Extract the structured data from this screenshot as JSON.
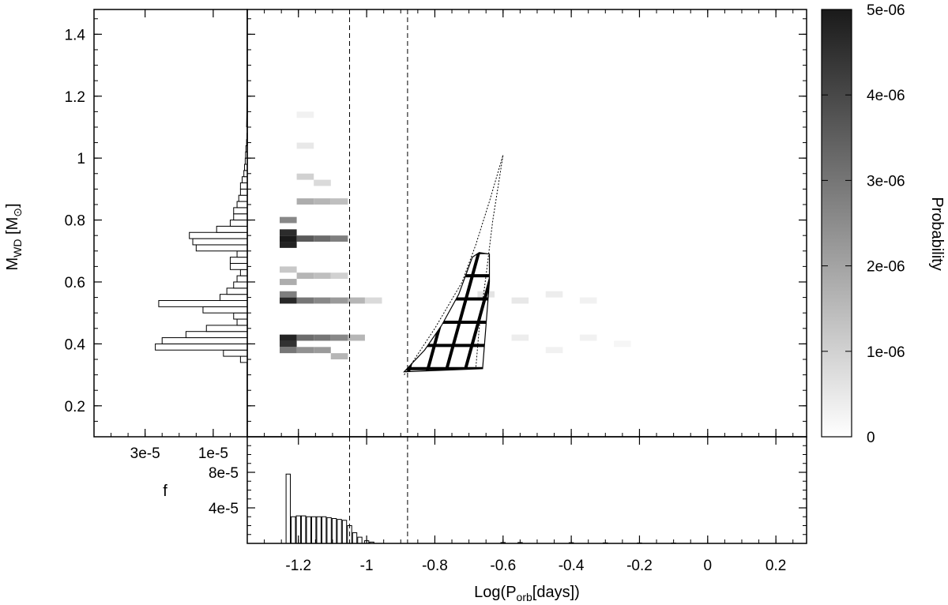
{
  "chart_data": [
    {
      "panel": "main",
      "type": "heatmap",
      "xlabel": "Log(P",
      "xlabel_sub": "orb",
      "xlabel_tail": "[days])",
      "ylabel": "M",
      "ylabel_sub": "WD",
      "ylabel_tail": " [M",
      "ylabel_sub2": "⊙",
      "ylabel_close": "]",
      "xlim": [
        -1.35,
        0.29
      ],
      "ylim": [
        0.1,
        1.48
      ],
      "xticks": [
        -1.2,
        -1,
        -0.8,
        -0.6,
        -0.4,
        -0.2,
        0,
        0.2
      ],
      "xtick_labels": [
        "-1.2",
        "-1",
        "-0.8",
        "-0.6",
        "-0.4",
        "-0.2",
        "0",
        "0.2"
      ],
      "yticks": [
        0.2,
        0.4,
        0.6,
        0.8,
        1,
        1.2,
        1.4
      ],
      "ytick_labels": [
        "0.2",
        "0.4",
        "0.6",
        "0.8",
        "1",
        "1.2",
        "1.4"
      ],
      "vlines": [
        -1.05,
        -0.88
      ],
      "colorbar": {
        "label": "Probability",
        "range": [
          0,
          5e-06
        ],
        "ticks": [
          0,
          1e-06,
          2e-06,
          3e-06,
          4e-06,
          5e-06
        ],
        "tick_labels": [
          "0",
          "1e-06",
          "2e-06",
          "3e-06",
          "4e-06",
          "5e-06"
        ]
      },
      "cell_size": [
        0.0125,
        0.02
      ],
      "cells": [
        [
          -1.23,
          0.74,
          5e-06
        ],
        [
          -1.23,
          0.72,
          4.8e-06
        ],
        [
          -1.23,
          0.76,
          4.6e-06
        ],
        [
          -1.23,
          0.54,
          4.7e-06
        ],
        [
          -1.23,
          0.42,
          4.8e-06
        ],
        [
          -1.23,
          0.4,
          4.5e-06
        ],
        [
          -1.23,
          0.38,
          3e-06
        ],
        [
          -1.23,
          0.8,
          2.6e-06
        ],
        [
          -1.23,
          0.56,
          2.8e-06
        ],
        [
          -1.23,
          0.6,
          1.8e-06
        ],
        [
          -1.23,
          0.64,
          1.2e-06
        ],
        [
          -1.18,
          0.74,
          3.6e-06
        ],
        [
          -1.13,
          0.74,
          3.2e-06
        ],
        [
          -1.08,
          0.74,
          2.8e-06
        ],
        [
          -1.18,
          0.54,
          3e-06
        ],
        [
          -1.13,
          0.54,
          2.6e-06
        ],
        [
          -1.08,
          0.54,
          2.2e-06
        ],
        [
          -1.03,
          0.54,
          1.6e-06
        ],
        [
          -0.98,
          0.54,
          8e-07
        ],
        [
          -1.18,
          0.42,
          3.2e-06
        ],
        [
          -1.13,
          0.42,
          3e-06
        ],
        [
          -1.08,
          0.42,
          2.6e-06
        ],
        [
          -1.03,
          0.42,
          1.6e-06
        ],
        [
          -1.18,
          0.38,
          2.4e-06
        ],
        [
          -1.13,
          0.38,
          2.2e-06
        ],
        [
          -1.08,
          0.36,
          1.6e-06
        ],
        [
          -1.18,
          0.86,
          1.8e-06
        ],
        [
          -1.13,
          0.86,
          1.6e-06
        ],
        [
          -1.08,
          0.86,
          1.4e-06
        ],
        [
          -1.18,
          0.94,
          1e-06
        ],
        [
          -1.13,
          0.92,
          8e-07
        ],
        [
          -1.18,
          1.04,
          5e-07
        ],
        [
          -1.18,
          1.14,
          3e-07
        ],
        [
          -1.18,
          0.62,
          1.6e-06
        ],
        [
          -1.13,
          0.62,
          1.4e-06
        ],
        [
          -1.08,
          0.62,
          1e-06
        ],
        [
          -0.65,
          0.56,
          6e-07
        ],
        [
          -0.55,
          0.54,
          5e-07
        ],
        [
          -0.45,
          0.56,
          4e-07
        ],
        [
          -0.35,
          0.54,
          3e-07
        ],
        [
          -0.55,
          0.42,
          4e-07
        ],
        [
          -0.45,
          0.38,
          3e-07
        ],
        [
          -0.35,
          0.42,
          3e-07
        ],
        [
          -0.25,
          0.4,
          2e-07
        ]
      ],
      "hatched_region": {
        "boundary": [
          [
            -0.89,
            0.31
          ],
          [
            -0.83,
            0.38
          ],
          [
            -0.78,
            0.46
          ],
          [
            -0.73,
            0.56
          ],
          [
            -0.69,
            0.68
          ],
          [
            -0.67,
            0.695
          ],
          [
            -0.64,
            0.69
          ],
          [
            -0.64,
            0.6
          ],
          [
            -0.65,
            0.46
          ],
          [
            -0.66,
            0.32
          ],
          [
            -0.89,
            0.31
          ]
        ]
      },
      "dotted_curve": [
        [
          -0.89,
          0.3
        ],
        [
          -0.8,
          0.45
        ],
        [
          -0.72,
          0.6
        ],
        [
          -0.68,
          0.72
        ],
        [
          -0.64,
          0.86
        ],
        [
          -0.6,
          1.01
        ],
        [
          -0.6,
          1.01
        ],
        [
          -0.63,
          0.8
        ],
        [
          -0.65,
          0.62
        ],
        [
          -0.67,
          0.45
        ],
        [
          -0.68,
          0.32
        ]
      ]
    },
    {
      "panel": "left",
      "type": "bar",
      "orientation": "horizontal",
      "xlim": [
        4.5e-05,
        0
      ],
      "xticks": [
        3e-05,
        1e-05
      ],
      "xtick_labels": [
        "3e-5",
        "1e-5"
      ],
      "bin_width": 0.02,
      "bins": [
        [
          0.35,
          2e-06
        ],
        [
          0.37,
          7e-06
        ],
        [
          0.39,
          2.7e-05
        ],
        [
          0.41,
          2.5e-05
        ],
        [
          0.43,
          1.8e-05
        ],
        [
          0.45,
          1.2e-05
        ],
        [
          0.47,
          3e-06
        ],
        [
          0.49,
          4e-06
        ],
        [
          0.51,
          1.3e-05
        ],
        [
          0.53,
          2.6e-05
        ],
        [
          0.55,
          8e-06
        ],
        [
          0.57,
          6e-06
        ],
        [
          0.59,
          4e-06
        ],
        [
          0.61,
          3e-06
        ],
        [
          0.63,
          2e-06
        ],
        [
          0.65,
          5e-06
        ],
        [
          0.67,
          5e-06
        ],
        [
          0.69,
          3e-06
        ],
        [
          0.71,
          1.5e-05
        ],
        [
          0.73,
          1.6e-05
        ],
        [
          0.75,
          1.7e-05
        ],
        [
          0.77,
          9e-06
        ],
        [
          0.79,
          5e-06
        ],
        [
          0.81,
          4e-06
        ],
        [
          0.83,
          4e-06
        ],
        [
          0.85,
          3e-06
        ],
        [
          0.87,
          2.5e-06
        ],
        [
          0.89,
          2e-06
        ],
        [
          0.91,
          2e-06
        ],
        [
          0.93,
          1.5e-06
        ],
        [
          0.95,
          1e-06
        ],
        [
          0.97,
          8e-07
        ],
        [
          0.99,
          6e-07
        ],
        [
          1.01,
          5e-07
        ],
        [
          1.03,
          4e-07
        ],
        [
          1.05,
          2e-07
        ],
        [
          1.07,
          1e-07
        ]
      ]
    },
    {
      "panel": "bottom",
      "type": "bar",
      "ylabel": "f",
      "ylim": [
        0,
        0.00012
      ],
      "yticks": [
        4e-05,
        8e-05
      ],
      "ytick_labels": [
        "4e-5",
        "8e-5"
      ],
      "bin_width": 0.0125,
      "bins": [
        [
          -1.23,
          7.8e-05
        ],
        [
          -1.215,
          3e-05
        ],
        [
          -1.2,
          3.1e-05
        ],
        [
          -1.185,
          3.1e-05
        ],
        [
          -1.17,
          3e-05
        ],
        [
          -1.155,
          3e-05
        ],
        [
          -1.14,
          3e-05
        ],
        [
          -1.125,
          3e-05
        ],
        [
          -1.11,
          2.9e-05
        ],
        [
          -1.095,
          2.8e-05
        ],
        [
          -1.08,
          2.7e-05
        ],
        [
          -1.065,
          2.6e-05
        ],
        [
          -1.05,
          2e-05
        ],
        [
          -1.035,
          1.2e-05
        ],
        [
          -1.02,
          7e-06
        ],
        [
          -1.0,
          3e-06
        ],
        [
          -0.985,
          1.5e-06
        ],
        [
          -0.6,
          1e-06
        ],
        [
          -0.55,
          1e-06
        ],
        [
          -0.4,
          8e-07
        ],
        [
          -0.3,
          6e-07
        ],
        [
          -0.2,
          5e-07
        ],
        [
          -0.1,
          4e-07
        ]
      ]
    }
  ]
}
